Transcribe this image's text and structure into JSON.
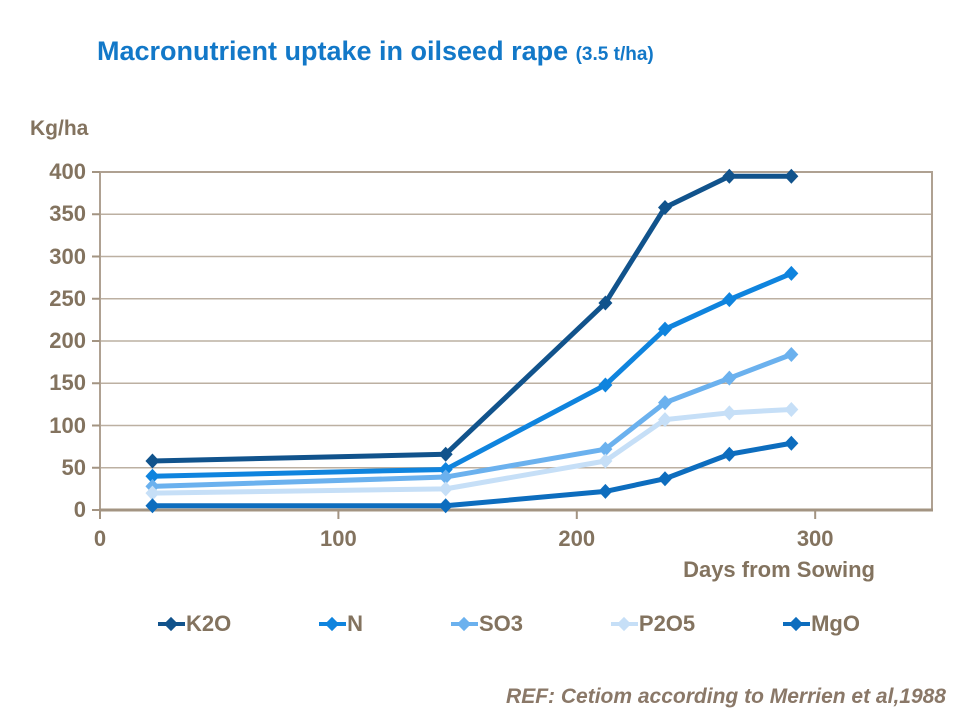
{
  "title": {
    "main": "Macronutrient uptake in oilseed rape ",
    "suffix": "(3.5 t/ha)"
  },
  "y_axis": {
    "unit_label": "Kg/ha",
    "ticks": [
      400,
      350,
      300,
      250,
      200,
      150,
      100,
      50,
      0
    ]
  },
  "x_axis": {
    "label": "Days from Sowing",
    "ticks": [
      0,
      100,
      200,
      300
    ]
  },
  "footer": {
    "reference": "REF: Cetiom according to Merrien et al,1988"
  },
  "colors": {
    "title": "#1278C8",
    "axis_text": "#83735F",
    "gridline": "#BCB0A2",
    "frame": "#AFA192",
    "axis_line": "#A39482",
    "background": "#FFFFFF"
  },
  "chart_data": {
    "type": "line",
    "title": "Macronutrient uptake in oilseed rape (3.5 t/ha)",
    "xlabel": "Days from Sowing",
    "ylabel": "Kg/ha",
    "x": [
      22,
      145,
      212,
      237,
      264,
      290
    ],
    "series": [
      {
        "name": "K2O",
        "color": "#11538C",
        "values": [
          58,
          66,
          245,
          358,
          395,
          395
        ]
      },
      {
        "name": "N",
        "color": "#0F84DE",
        "values": [
          40,
          48,
          148,
          214,
          249,
          280
        ]
      },
      {
        "name": "SO3",
        "color": "#6BB1EE",
        "values": [
          28,
          39,
          72,
          127,
          156,
          184
        ]
      },
      {
        "name": "P2O5",
        "color": "#C6DFF7",
        "values": [
          20,
          25,
          58,
          107,
          115,
          119
        ]
      },
      {
        "name": "MgO",
        "color": "#0D6DBE",
        "values": [
          5,
          5,
          22,
          37,
          66,
          79
        ]
      }
    ],
    "xlim": [
      0,
      349
    ],
    "ylim": [
      0,
      400
    ],
    "x_ticks": [
      0,
      100,
      200,
      300
    ],
    "y_ticks": [
      0,
      50,
      100,
      150,
      200,
      250,
      300,
      350,
      400
    ],
    "grid": "horizontal",
    "legend_position": "bottom",
    "marker": "diamond"
  }
}
